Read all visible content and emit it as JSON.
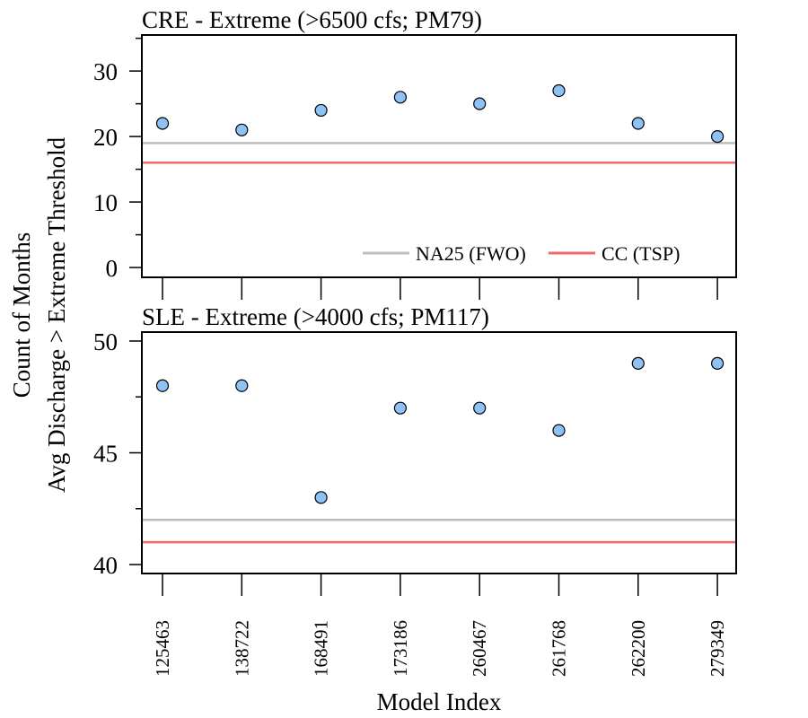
{
  "figure": {
    "ylabel_line1": "Count of Months",
    "ylabel_line2": "Avg Discharge > Extreme Threshold",
    "xlabel": "Model Index",
    "colors": {
      "point_fill": "#8ec2f5",
      "point_stroke": "#000000",
      "na25": "#bdbdbd",
      "cc": "#ef6a6a"
    }
  },
  "legend": {
    "items": [
      {
        "label": "NA25 (FWO)",
        "color": "#bdbdbd"
      },
      {
        "label": "CC (TSP)",
        "color": "#ef6a6a"
      }
    ]
  },
  "chart_data": [
    {
      "type": "scatter",
      "title": "CRE - Extreme (>6500 cfs; PM79)",
      "categories": [
        "125463",
        "138722",
        "168491",
        "173186",
        "260467",
        "261768",
        "262200",
        "279349"
      ],
      "values": [
        22,
        21,
        24,
        26,
        25,
        27,
        22,
        20
      ],
      "reference_lines": [
        {
          "name": "NA25 (FWO)",
          "value": 19
        },
        {
          "name": "CC (TSP)",
          "value": 16
        }
      ],
      "ylim": [
        -1.5,
        35.5
      ],
      "yticks": [
        0,
        10,
        20,
        30
      ],
      "legend_position": "bottom-right"
    },
    {
      "type": "scatter",
      "title": "SLE - Extreme (>4000 cfs; PM117)",
      "categories": [
        "125463",
        "138722",
        "168491",
        "173186",
        "260467",
        "261768",
        "262200",
        "279349"
      ],
      "values": [
        48,
        48,
        43,
        47,
        47,
        46,
        49,
        49
      ],
      "reference_lines": [
        {
          "name": "NA25 (FWO)",
          "value": 42
        },
        {
          "name": "CC (TSP)",
          "value": 41
        }
      ],
      "ylim": [
        39.6,
        50.4
      ],
      "yticks": [
        40,
        45,
        50
      ]
    }
  ]
}
